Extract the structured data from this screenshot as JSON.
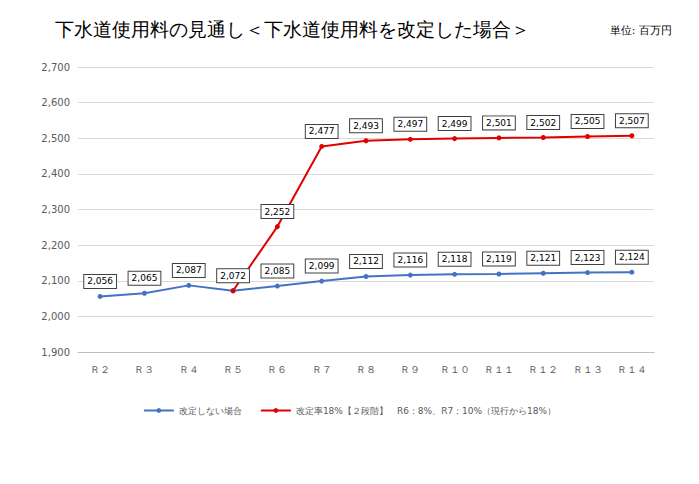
{
  "chart_data": {
    "type": "line",
    "title": "下水道使用料の見通し＜下水道使用料を改定した場合＞",
    "subtitle": "単位: 百万円",
    "categories": [
      "Ｒ２",
      "Ｒ３",
      "Ｒ４",
      "Ｒ５",
      "Ｒ６",
      "Ｒ７",
      "Ｒ８",
      "Ｒ９",
      "Ｒ１０",
      "Ｒ１１",
      "Ｒ１２",
      "Ｒ１３",
      "Ｒ１４"
    ],
    "series": [
      {
        "name": "改定しない場合",
        "color": "#4472c4",
        "marker": "circle",
        "values": [
          2056,
          2065,
          2087,
          2072,
          2085,
          2099,
          2112,
          2116,
          2118,
          2119,
          2121,
          2123,
          2124
        ],
        "value_labels": [
          "2,056",
          "2,065",
          "2,087",
          "2,072",
          "2,085",
          "2,099",
          "2,112",
          "2,116",
          "2,118",
          "2,119",
          "2,121",
          "2,123",
          "2,124"
        ]
      },
      {
        "name": "改定率18%【２段階】　R6：8%、R7：10%（現行から18%）",
        "color": "#e00000",
        "marker": "circle",
        "values": [
          null,
          null,
          null,
          2072,
          2252,
          2477,
          2493,
          2497,
          2499,
          2501,
          2502,
          2505,
          2507
        ],
        "value_labels": [
          null,
          null,
          null,
          null,
          "2,252",
          "2,477",
          "2,493",
          "2,497",
          "2,499",
          "2,501",
          "2,502",
          "2,505",
          "2,507"
        ]
      }
    ],
    "ylim": [
      1900,
      2700
    ],
    "yticks": [
      {
        "value": 1900,
        "label": "1,900"
      },
      {
        "value": 2000,
        "label": "2,000"
      },
      {
        "value": 2100,
        "label": "2,100"
      },
      {
        "value": 2200,
        "label": "2,200"
      },
      {
        "value": 2300,
        "label": "2,300"
      },
      {
        "value": 2400,
        "label": "2,400"
      },
      {
        "value": 2500,
        "label": "2,500"
      },
      {
        "value": 2600,
        "label": "2,600"
      },
      {
        "value": 2700,
        "label": "2,700"
      }
    ],
    "grid": true,
    "legend": "bottom",
    "data_labels": true
  }
}
